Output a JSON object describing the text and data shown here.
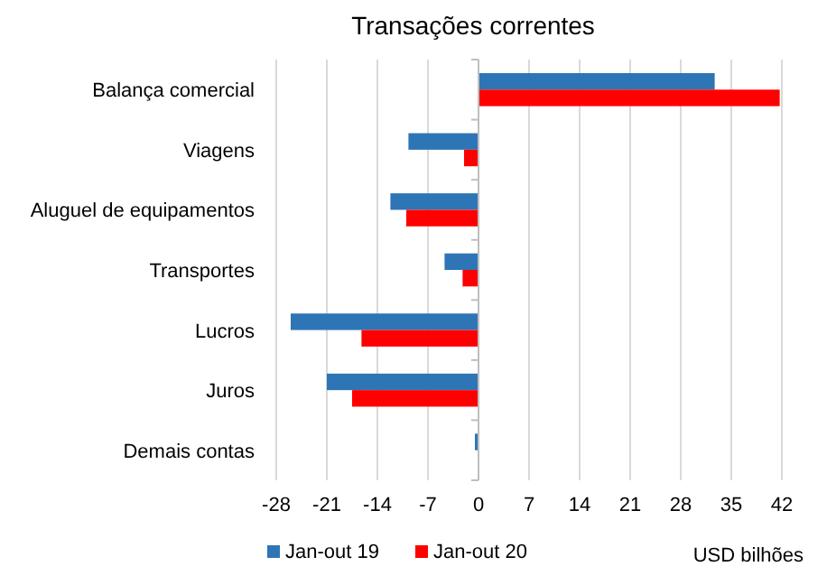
{
  "chart_data": {
    "type": "bar",
    "orientation": "horizontal",
    "title": "Transações correntes",
    "xlabel": "USD bilhões",
    "categories": [
      "Balança comercial",
      "Viagens",
      "Aluguel de equipamentos",
      "Transportes",
      "Lucros",
      "Juros",
      "Demais contas"
    ],
    "series": [
      {
        "name": "Jan-out 19",
        "color": "#2e75b6",
        "values": [
          32.7,
          -9.7,
          -12.2,
          -4.7,
          -26.0,
          -21.0,
          -0.5
        ]
      },
      {
        "name": "Jan-out 20",
        "color": "#ff0000",
        "values": [
          41.7,
          -2.0,
          -10.0,
          -2.2,
          -16.2,
          -17.5,
          0
        ]
      }
    ],
    "xlim": [
      -28,
      42
    ],
    "xticks": [
      -28,
      -21,
      -14,
      -7,
      0,
      7,
      14,
      21,
      28,
      35,
      42
    ],
    "grid": "x",
    "legend": "bottom"
  }
}
